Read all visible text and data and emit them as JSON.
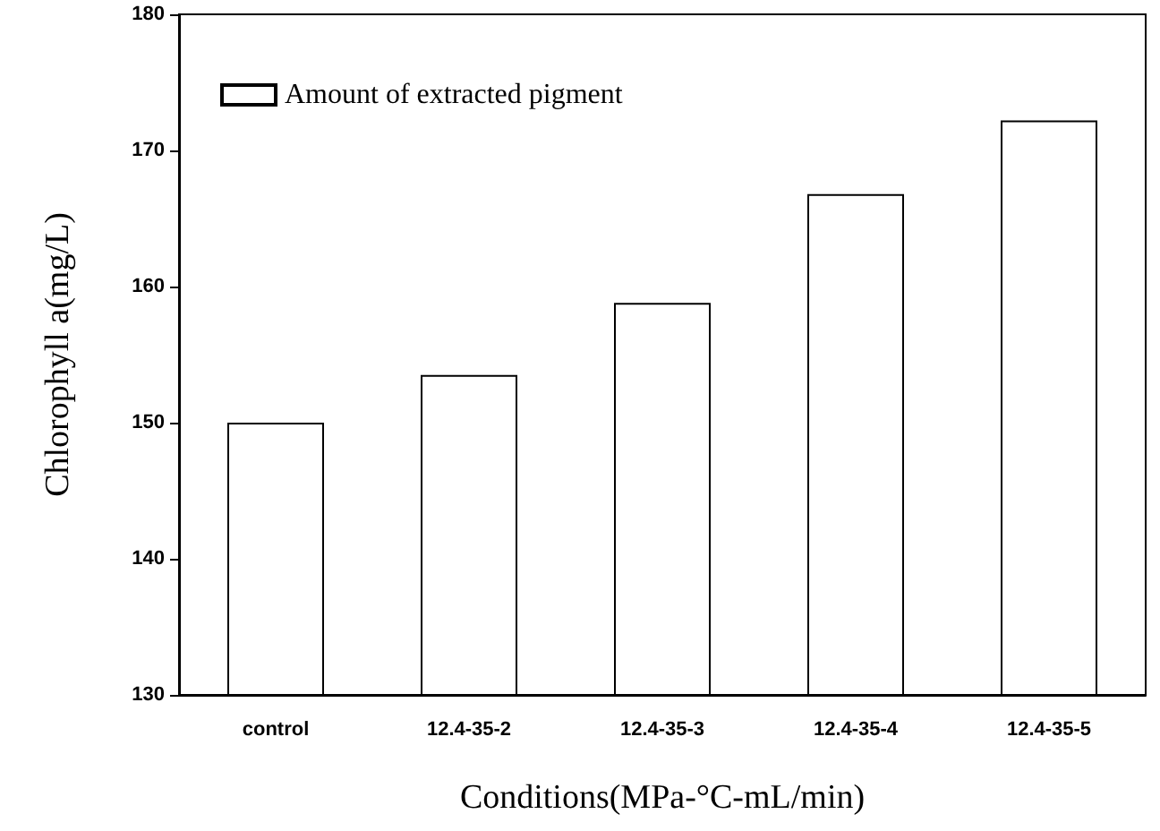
{
  "chart_data": {
    "type": "bar",
    "xlabel": "Conditions(MPa-°C-mL/min)",
    "ylabel": "Chlorophyll a(mg/L)",
    "categories": [
      "control",
      "12.4-35-2",
      "12.4-35-3",
      "12.4-35-4",
      "12.4-35-5"
    ],
    "series": [
      {
        "name": "Amount of extracted pigment",
        "color": "#ffffff",
        "values": [
          150,
          153.5,
          158.8,
          166.8,
          172.2
        ]
      }
    ],
    "ylim": [
      130,
      180
    ],
    "yticks": [
      130,
      140,
      150,
      160,
      170,
      180
    ],
    "grid": false,
    "legend": "top left"
  }
}
